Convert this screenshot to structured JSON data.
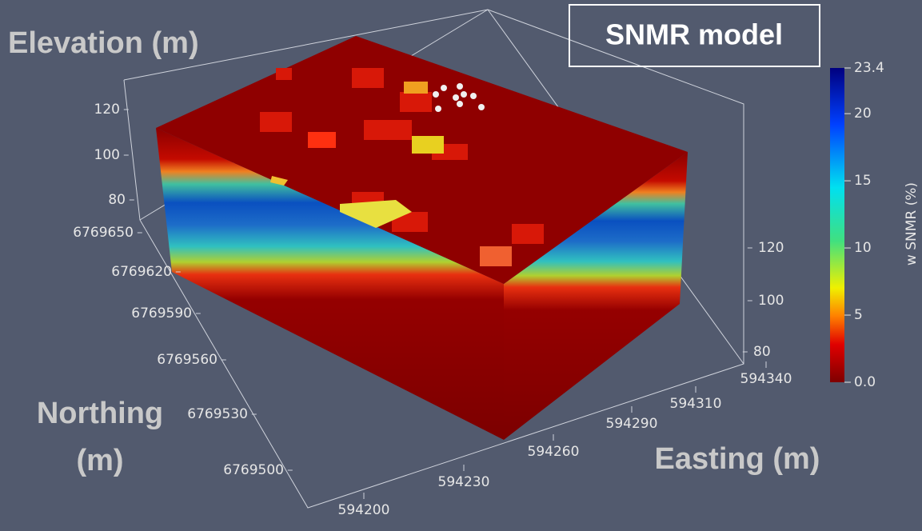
{
  "title": "SNMR model",
  "elevation_axis": {
    "label": "Elevation (m)",
    "ticks": [
      120,
      100,
      80
    ]
  },
  "northing_axis": {
    "label": [
      "Northing",
      "(m)"
    ],
    "ticks": [
      6769650,
      6769620,
      6769590,
      6769560,
      6769530,
      6769500
    ]
  },
  "easting_axis": {
    "label": "Easting (m)",
    "ticks": [
      594200,
      594230,
      594260,
      594290,
      594310,
      594340
    ]
  },
  "elevation_axis_right": {
    "ticks": [
      120,
      100,
      80
    ]
  },
  "colorbar": {
    "title": "w SNMR (%)",
    "range": [
      0,
      23.4
    ],
    "ticks": [
      23.4,
      20,
      15,
      10,
      5,
      {
        "value": 0,
        "label": "0.0"
      }
    ]
  }
}
